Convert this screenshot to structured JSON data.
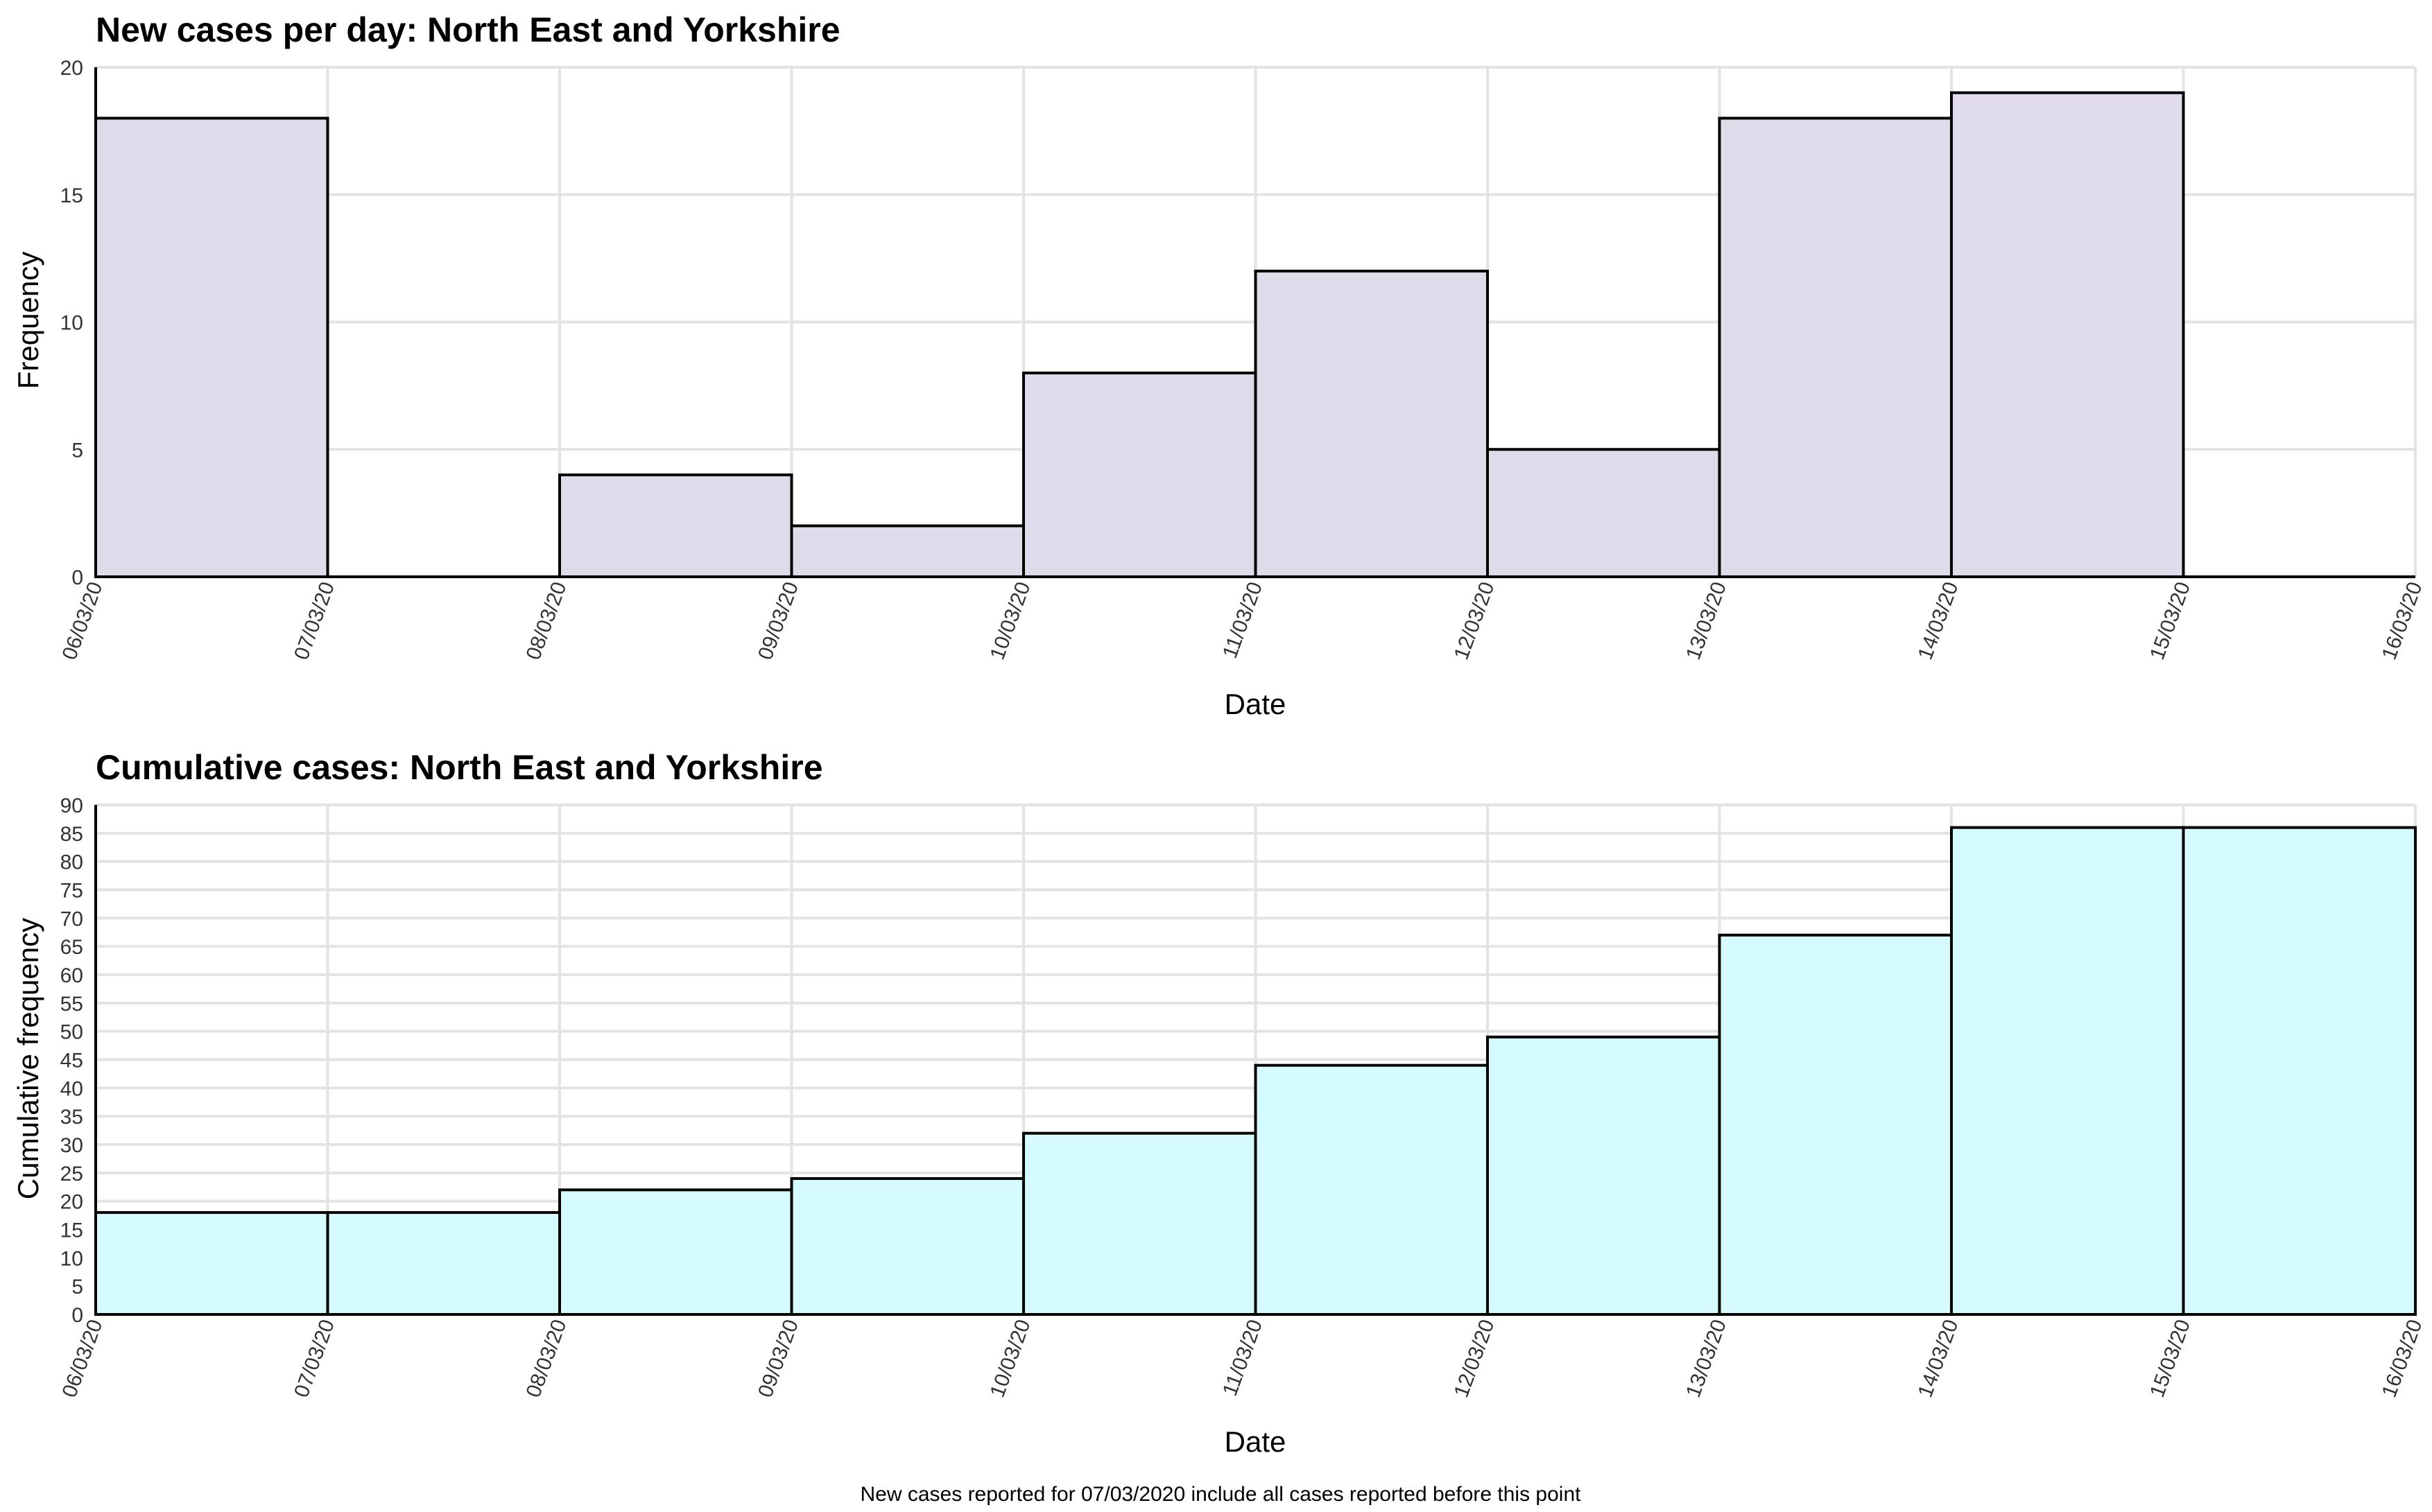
{
  "colors": {
    "new_cases_fill": "#e0dbea",
    "cumulative_fill": "#d5fbfe",
    "outline": "#000000",
    "grid": "#e3e3e3"
  },
  "footnote": "New cases reported for 07/03/2020 include all cases reported before this point",
  "chart_data": [
    {
      "type": "bar",
      "title": "New cases per day: North East and Yorkshire",
      "xlabel": "Date",
      "ylabel": "Frequency",
      "x_ticks": [
        "06/03/20",
        "07/03/20",
        "08/03/20",
        "09/03/20",
        "10/03/20",
        "11/03/20",
        "12/03/20",
        "13/03/20",
        "14/03/20",
        "15/03/20",
        "16/03/20"
      ],
      "categories": [
        "06/03/20",
        "07/03/20",
        "08/03/20",
        "09/03/20",
        "10/03/20",
        "11/03/20",
        "12/03/20",
        "13/03/20",
        "14/03/20",
        "15/03/20"
      ],
      "values": [
        18,
        0,
        4,
        2,
        8,
        12,
        5,
        18,
        19,
        0
      ],
      "ylim": [
        0,
        20
      ],
      "y_ticks": [
        0,
        5,
        10,
        15,
        20
      ],
      "grid": true
    },
    {
      "type": "bar",
      "title": "Cumulative cases: North East and Yorkshire",
      "xlabel": "Date",
      "ylabel": "Cumulative frequency",
      "x_ticks": [
        "06/03/20",
        "07/03/20",
        "08/03/20",
        "09/03/20",
        "10/03/20",
        "11/03/20",
        "12/03/20",
        "13/03/20",
        "14/03/20",
        "15/03/20",
        "16/03/20"
      ],
      "categories": [
        "06/03/20",
        "07/03/20",
        "08/03/20",
        "09/03/20",
        "10/03/20",
        "11/03/20",
        "12/03/20",
        "13/03/20",
        "14/03/20",
        "15/03/20"
      ],
      "values": [
        18,
        18,
        22,
        24,
        32,
        44,
        49,
        67,
        86,
        86
      ],
      "ylim": [
        0,
        90
      ],
      "y_ticks": [
        0,
        5,
        10,
        15,
        20,
        25,
        30,
        35,
        40,
        45,
        50,
        55,
        60,
        65,
        70,
        75,
        80,
        85,
        90
      ],
      "grid": true
    }
  ]
}
